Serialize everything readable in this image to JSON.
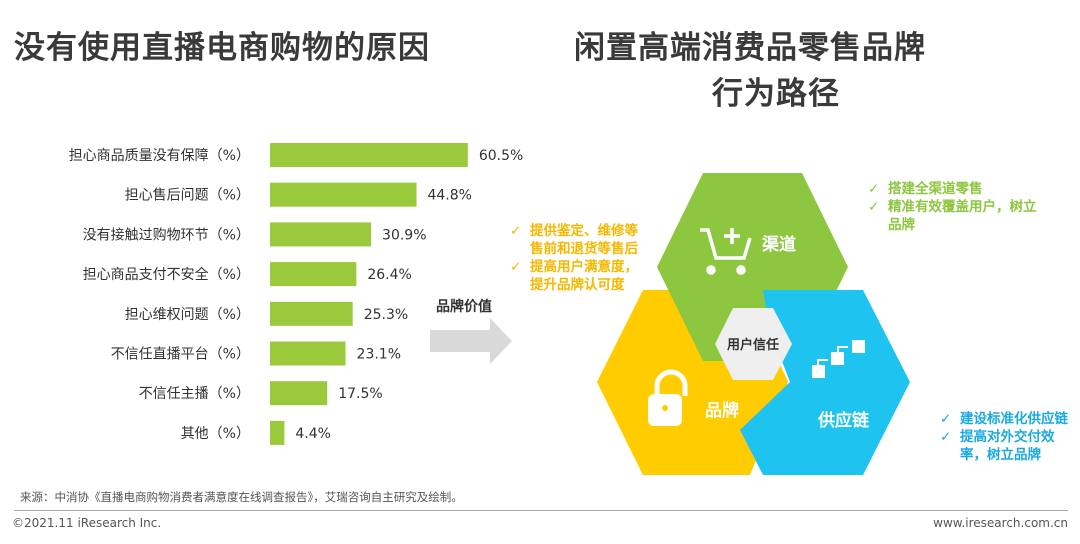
{
  "titles": {
    "left": "没有使用直播电商购物的原因",
    "right_line1": "闲置高端消费品零售品牌",
    "right_line2": "行为路径"
  },
  "chart_data": {
    "type": "bar",
    "orientation": "horizontal",
    "categories": [
      "担心商品质量没有保障（%）",
      "担心售后问题（%）",
      "没有接触过购物环节（%）",
      "担心商品支付不安全（%）",
      "担心维权问题（%）",
      "不信任直播平台（%）",
      "不信任主播（%）",
      "其他（%）"
    ],
    "values": [
      60.5,
      44.8,
      30.9,
      26.4,
      25.3,
      23.1,
      17.5,
      4.4
    ],
    "data_labels": [
      "60.5%",
      "44.8%",
      "30.9%",
      "26.4%",
      "25.3%",
      "23.1%",
      "17.5%",
      "4.4%"
    ],
    "bar_color": "#9BC93C",
    "grid": false
  },
  "diagram": {
    "arrow_label": "品牌价值",
    "center": "用户信任",
    "channel": {
      "label": "渠道",
      "icon": "cart-plus-icon",
      "color": "#8DC63F",
      "notes": [
        "搭建全渠道零售",
        "精准有效覆盖用户，树立品牌"
      ]
    },
    "brand": {
      "label": "品牌",
      "icon": "lock-icon",
      "color": "#FFCC00",
      "text_color": "#F5B800",
      "notes": [
        "提供鉴定、维修等售前和退货等售后",
        "提高用户满意度，提升品牌认可度"
      ]
    },
    "supply": {
      "label": "供应链",
      "icon": "steps-icon",
      "color": "#1EC3F0",
      "text_color": "#1AA9E0",
      "notes": [
        "建设标准化供应链",
        "提高对外交付效率，树立品牌"
      ]
    },
    "check": "✓"
  },
  "footer": {
    "source": "来源：中消协《直播电商购物消费者满意度在线调查报告》，艾瑞咨询自主研究及绘制。",
    "copyright": "©2021.11 iResearch Inc.",
    "website": "www.iresearch.com.cn"
  }
}
